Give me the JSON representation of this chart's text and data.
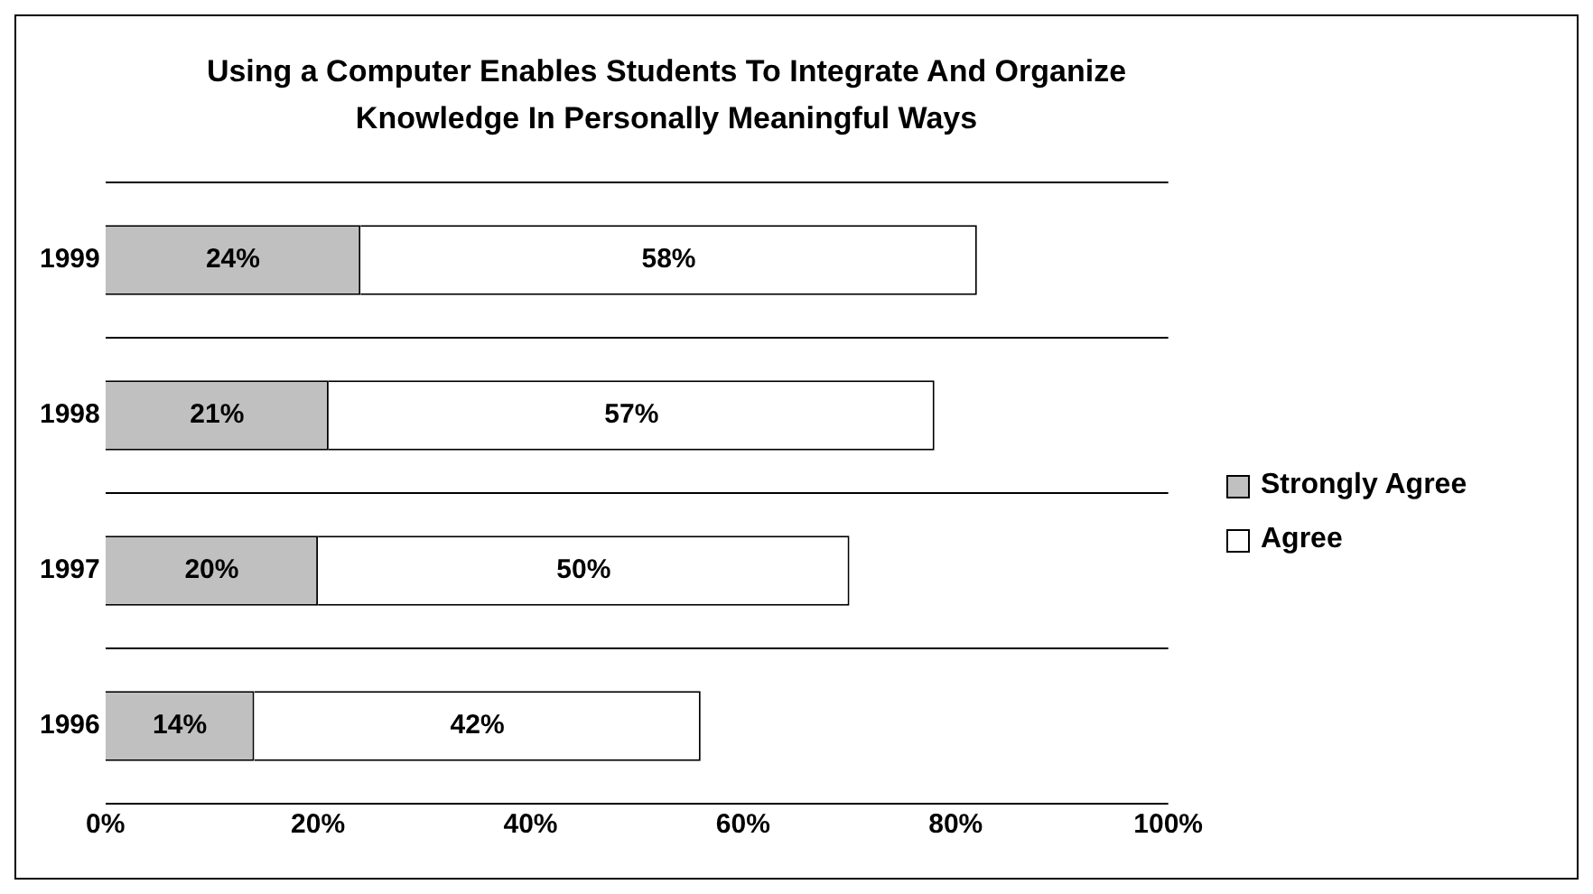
{
  "chart_data": {
    "type": "bar",
    "orientation": "horizontal",
    "stacked": true,
    "title": "Using a Computer Enables Students To Integrate And Organize Knowledge In Personally Meaningful Ways",
    "categories": [
      "1999",
      "1998",
      "1997",
      "1996"
    ],
    "series": [
      {
        "name": "Strongly Agree",
        "color": "#c0c0c0",
        "values": [
          24,
          21,
          20,
          14
        ],
        "value_labels": [
          "24%",
          "21%",
          "20%",
          "14%"
        ]
      },
      {
        "name": "Agree",
        "color": "#ffffff",
        "values": [
          58,
          57,
          50,
          42
        ],
        "value_labels": [
          "58%",
          "57%",
          "50%",
          "42%"
        ]
      }
    ],
    "xlim": [
      0,
      100
    ],
    "xticks": [
      {
        "value": 0,
        "label": "0%"
      },
      {
        "value": 20,
        "label": "20%"
      },
      {
        "value": 40,
        "label": "40%"
      },
      {
        "value": 60,
        "label": "60%"
      },
      {
        "value": 80,
        "label": "80%"
      },
      {
        "value": 100,
        "label": "100%"
      }
    ],
    "grid": "y",
    "legend": "right"
  }
}
